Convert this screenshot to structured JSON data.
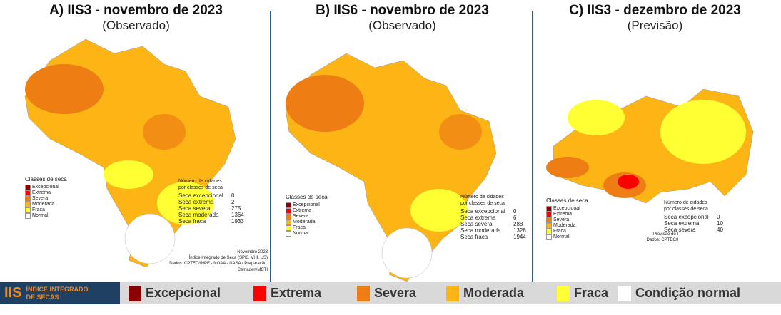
{
  "panels": [
    {
      "title": "A) IIS3 - novembro de 2023",
      "subtitle": "(Observado)",
      "legend_title": "Classes de seca",
      "legend": [
        "Excepcional",
        "Extrema",
        "Severa",
        "Moderada",
        "Fraca",
        "Normal"
      ],
      "table_title": "Número de cidades por classes de seca",
      "rows": [
        {
          "label": "Seca excepcional",
          "value": 0
        },
        {
          "label": "Seca extrema",
          "value": 2
        },
        {
          "label": "Seca severa",
          "value": 275
        },
        {
          "label": "Seca moderada",
          "value": 1364
        },
        {
          "label": "Seca fraca",
          "value": 1933
        }
      ],
      "notes": [
        "Novembro 2023",
        "Índice Integrado de Seca (SPI3, VHI, US)",
        "Dados: CPTEC/INPE - NOAA - NASA / Preparação: Cemaden/MCTI"
      ]
    },
    {
      "title": "B) IIS6 - novembro de 2023",
      "subtitle": "(Observado)",
      "legend_title": "Classes de seca",
      "legend": [
        "Excepcional",
        "Extrema",
        "Severa",
        "Moderada",
        "Fraca",
        "Normal"
      ],
      "table_title": "Número de cidades por classes de seca",
      "rows": [
        {
          "label": "Seca excepcional",
          "value": 0
        },
        {
          "label": "Seca extrema",
          "value": 6
        },
        {
          "label": "Seca severa",
          "value": 288
        },
        {
          "label": "Seca moderada",
          "value": 1328
        },
        {
          "label": "Seca fraca",
          "value": 1944
        }
      ],
      "notes": []
    },
    {
      "title": "C) IIS3 - dezembro de 2023",
      "subtitle": "(Previsão)",
      "legend_title": "Classes de seca",
      "legend": [
        "Excepcional",
        "Extrema",
        "Severa",
        "Moderada",
        "Fraca",
        "Normal"
      ],
      "table_title": "Número de cidades por classes de seca",
      "rows": [
        {
          "label": "Seca excepcional",
          "value": 0
        },
        {
          "label": "Seca extrema",
          "value": 10
        },
        {
          "label": "Seca severa",
          "value": 40
        }
      ],
      "notes": [
        "Previsão do I",
        "Dados: CPTEC/I"
      ]
    }
  ],
  "footer": {
    "logo": "IIS",
    "logo_text": "ÍNDICE INTEGRADO DE SECAS",
    "items": [
      {
        "label": "Excepcional",
        "color": "#8b0000"
      },
      {
        "label": "Extrema",
        "color": "#ff0000"
      },
      {
        "label": "Severa",
        "color": "#ee7d14"
      },
      {
        "label": "Moderada",
        "color": "#fdb515"
      },
      {
        "label": "Fraca",
        "color": "#ffff33"
      },
      {
        "label": "Condição normal",
        "color": "#ffffff"
      }
    ]
  }
}
